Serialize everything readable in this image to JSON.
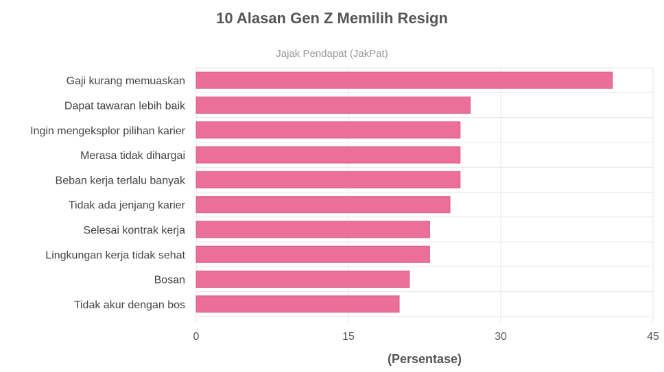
{
  "chart_data": {
    "type": "bar",
    "orientation": "horizontal",
    "title": "10 Alasan Gen Z Memilih Resign",
    "subtitle": "Jajak Pendapat (JakPat)",
    "xlabel": "(Persentase)",
    "ylabel": "",
    "categories": [
      "Gaji kurang memuaskan",
      "Dapat tawaran lebih baik",
      "Ingin mengeksplor pilihan karier",
      "Merasa tidak dihargai",
      "Beban kerja terlalu banyak",
      "Tidak ada jenjang karier",
      "Selesai kontrak kerja",
      "Lingkungan kerja tidak sehat",
      "Bosan",
      "Tidak akur dengan bos"
    ],
    "values": [
      41,
      27,
      26,
      26,
      26,
      25,
      23,
      23,
      21,
      20
    ],
    "xlim": [
      0,
      45
    ],
    "xticks": [
      "0",
      "15",
      "30",
      "45"
    ],
    "grid": true,
    "bar_color": "#eb7099",
    "bar_border_color": "#d95a86"
  }
}
